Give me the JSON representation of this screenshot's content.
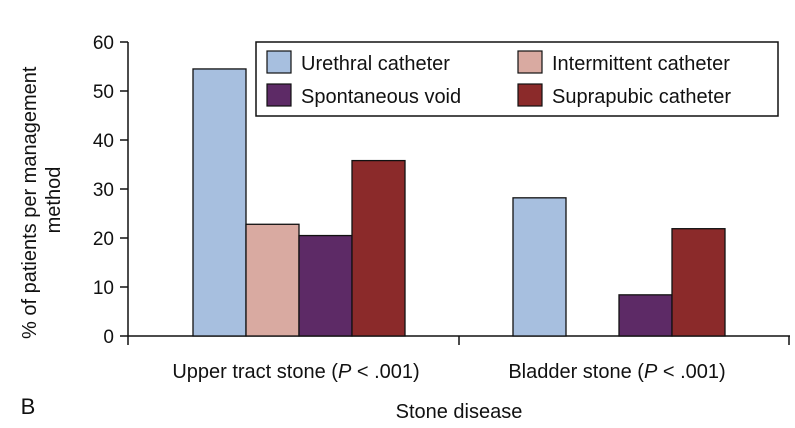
{
  "panel_label": "B",
  "chart_data": {
    "type": "bar",
    "title": "",
    "xlabel": "Stone disease",
    "ylabel_lines": [
      "% of patients per management",
      "method"
    ],
    "ylim": [
      0,
      60
    ],
    "yticks": [
      0,
      10,
      20,
      30,
      40,
      50,
      60
    ],
    "categories": [
      {
        "name": "Upper tract stone",
        "p_label": "P",
        "p_rest": " < .001)"
      },
      {
        "name": "Bladder stone",
        "p_label": "P",
        "p_rest": " < .001)"
      }
    ],
    "series": [
      {
        "name": "Urethral catheter",
        "color": "#a7bfdf",
        "values": [
          54.5,
          28.2
        ]
      },
      {
        "name": "Intermittent catheter",
        "color": "#d9aaa1",
        "values": [
          22.8,
          0
        ]
      },
      {
        "name": "Spontaneous void",
        "color": "#5d2a66",
        "values": [
          20.5,
          8.4
        ]
      },
      {
        "name": "Suprapubic catheter",
        "color": "#8b2a2a",
        "values": [
          35.8,
          21.9
        ]
      }
    ],
    "legend_position": "top-right",
    "grid": false
  }
}
